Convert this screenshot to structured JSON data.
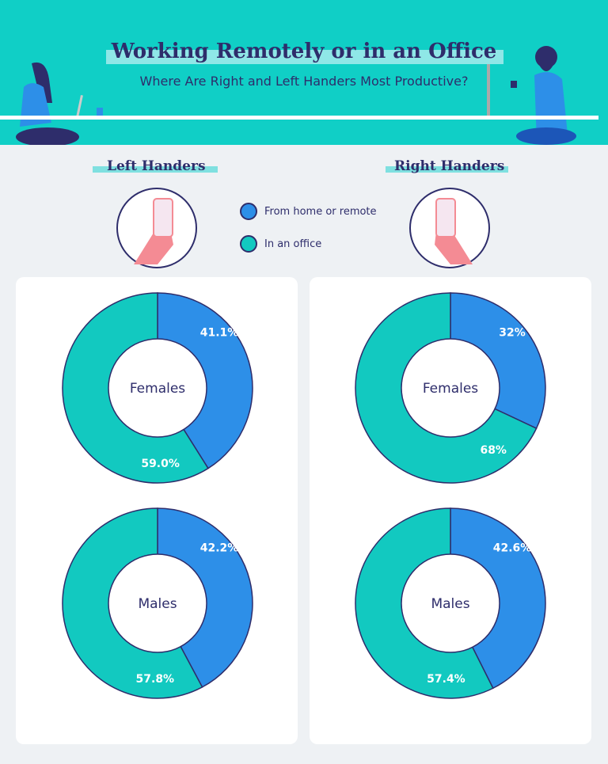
{
  "header": {
    "title": "Working Remotely or in an Office",
    "subtitle": "Where Are Right and Left Handers Most Productive?"
  },
  "legend": [
    {
      "label": "From home or remote",
      "color": "#2d8fe8"
    },
    {
      "label": "In an office",
      "color": "#12c9c0"
    }
  ],
  "sections": [
    {
      "title": "Left Handers",
      "icon": "hand-holding-phone-icon"
    },
    {
      "title": "Right Handers",
      "icon": "hand-holding-phone-icon"
    }
  ],
  "chart_data": [
    {
      "type": "pie",
      "group": "Left Handers",
      "center_label": "Females",
      "series": [
        {
          "name": "From home or remote",
          "value": 41.1,
          "label": "41.1%"
        },
        {
          "name": "In an office",
          "value": 59.0,
          "label": "59.0%"
        }
      ]
    },
    {
      "type": "pie",
      "group": "Left Handers",
      "center_label": "Males",
      "series": [
        {
          "name": "From home or remote",
          "value": 42.2,
          "label": "42.2%"
        },
        {
          "name": "In an office",
          "value": 57.8,
          "label": "57.8%"
        }
      ]
    },
    {
      "type": "pie",
      "group": "Right Handers",
      "center_label": "Females",
      "series": [
        {
          "name": "From home or remote",
          "value": 32,
          "label": "32%"
        },
        {
          "name": "In an office",
          "value": 68,
          "label": "68%"
        }
      ]
    },
    {
      "type": "pie",
      "group": "Right Handers",
      "center_label": "Males",
      "series": [
        {
          "name": "From home or remote",
          "value": 42.6,
          "label": "42.6%"
        },
        {
          "name": "In an office",
          "value": 57.4,
          "label": "57.4%"
        }
      ]
    }
  ]
}
